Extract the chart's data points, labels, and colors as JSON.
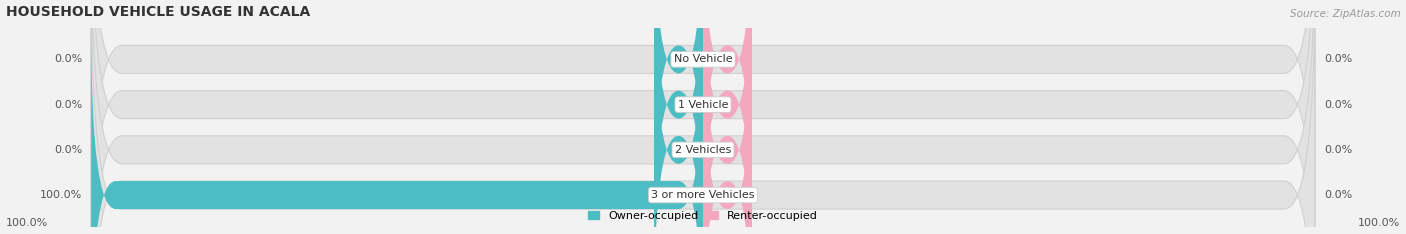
{
  "title": "HOUSEHOLD VEHICLE USAGE IN ACALA",
  "source": "Source: ZipAtlas.com",
  "categories": [
    "No Vehicle",
    "1 Vehicle",
    "2 Vehicles",
    "3 or more Vehicles"
  ],
  "owner_values": [
    0.0,
    0.0,
    0.0,
    100.0
  ],
  "renter_values": [
    0.0,
    0.0,
    0.0,
    0.0
  ],
  "owner_color": "#4DBDC4",
  "renter_color": "#F4A8C0",
  "background_color": "#f2f2f2",
  "bar_bg_color": "#e2e2e2",
  "bar_border_color": "#d0d0d0",
  "title_fontsize": 10,
  "source_fontsize": 7.5,
  "label_fontsize": 8,
  "category_fontsize": 8,
  "max_value": 100.0,
  "stub_size": 8.0,
  "legend_owner": "Owner-occupied",
  "legend_renter": "Renter-occupied",
  "bottom_left_label": "100.0%",
  "bottom_right_label": "100.0%"
}
